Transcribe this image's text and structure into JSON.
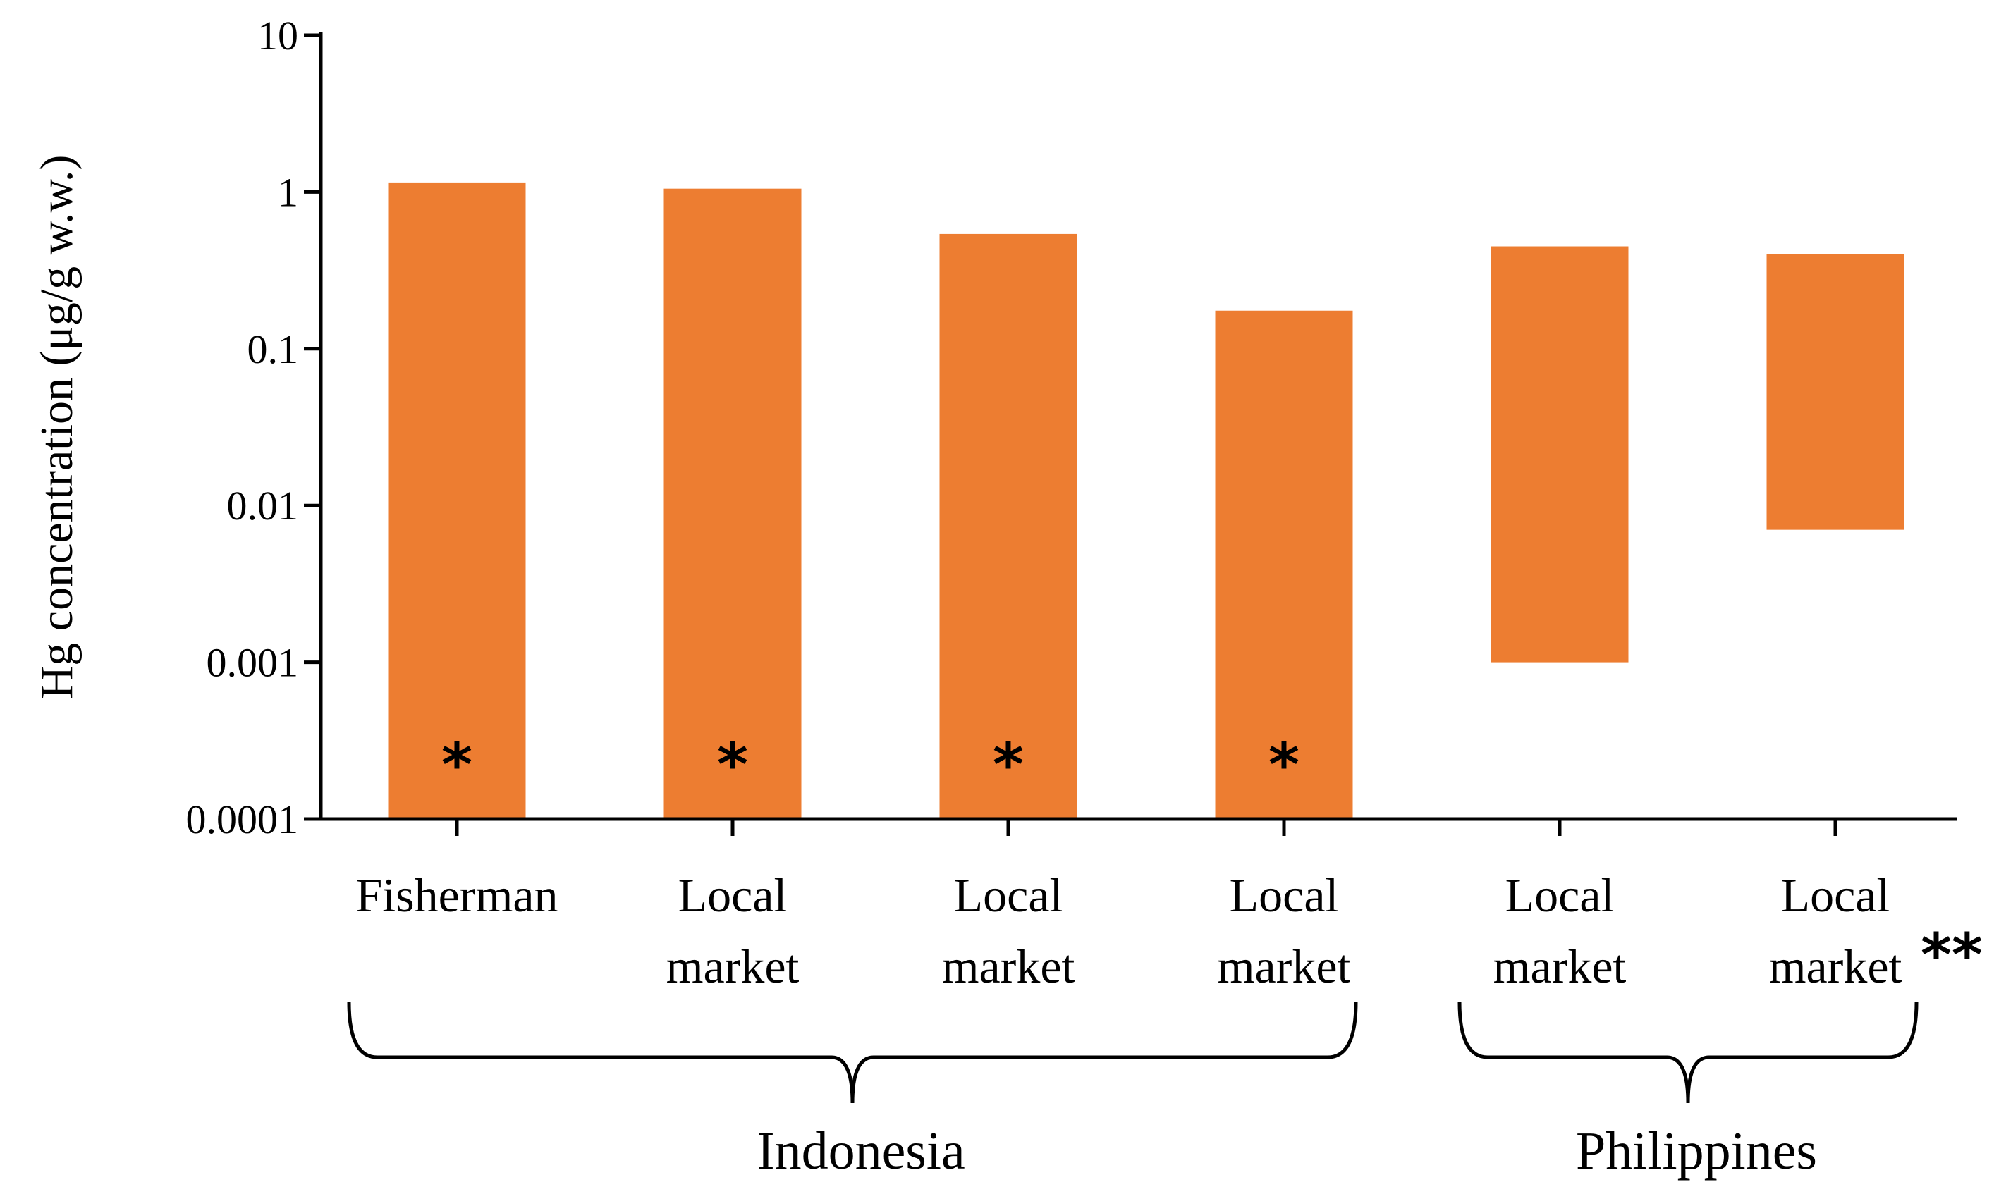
{
  "chart_data": {
    "type": "bar",
    "ylabel": "Hg concentration (μg/g w.w.)",
    "yscale": "log",
    "ylim": [
      0.0001,
      10
    ],
    "y_ticks": [
      "0.0001",
      "0.001",
      "0.01",
      "0.1",
      "1",
      "10"
    ],
    "bar_color": "#ED7D31",
    "bars": [
      {
        "label_line1": "Fisherman",
        "label_line2": "",
        "min": 0.0001,
        "max": 1.15,
        "marker": "*",
        "label_suffix": ""
      },
      {
        "label_line1": "Local",
        "label_line2": "market",
        "min": 0.0001,
        "max": 1.05,
        "marker": "*",
        "label_suffix": ""
      },
      {
        "label_line1": "Local",
        "label_line2": "market",
        "min": 0.0001,
        "max": 0.54,
        "marker": "*",
        "label_suffix": ""
      },
      {
        "label_line1": "Local",
        "label_line2": "market",
        "min": 0.0001,
        "max": 0.175,
        "marker": "*",
        "label_suffix": ""
      },
      {
        "label_line1": "Local",
        "label_line2": "market",
        "min": 0.001,
        "max": 0.45,
        "marker": "",
        "label_suffix": ""
      },
      {
        "label_line1": "Local",
        "label_line2": "market",
        "min": 0.007,
        "max": 0.4,
        "marker": "",
        "label_suffix": "**"
      }
    ],
    "groups": [
      {
        "name": "Indonesia",
        "bars": [
          0,
          1,
          2,
          3
        ]
      },
      {
        "name": "Philippines",
        "bars": [
          4,
          5
        ]
      }
    ],
    "grid": false,
    "legend": "none"
  }
}
